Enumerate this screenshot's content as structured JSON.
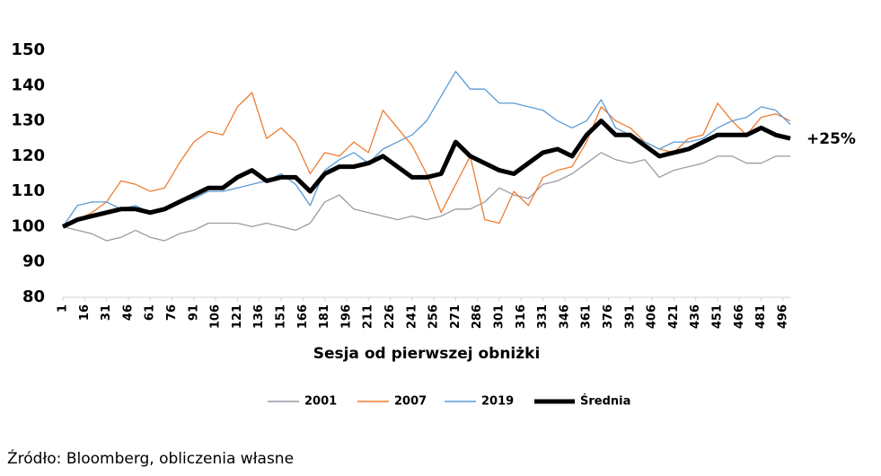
{
  "chart_data": {
    "type": "line",
    "x": [
      1,
      11,
      21,
      31,
      41,
      51,
      61,
      71,
      81,
      91,
      101,
      111,
      121,
      131,
      141,
      151,
      161,
      171,
      181,
      191,
      201,
      211,
      221,
      231,
      241,
      251,
      261,
      271,
      281,
      291,
      301,
      311,
      321,
      331,
      341,
      351,
      361,
      371,
      381,
      391,
      401,
      411,
      421,
      431,
      441,
      451,
      461,
      471,
      481,
      491,
      501
    ],
    "series": [
      {
        "name": "2001",
        "color": "#9a9aa6",
        "values": [
          100,
          99,
          98,
          96,
          97,
          99,
          97,
          96,
          98,
          99,
          101,
          101,
          101,
          100,
          101,
          100,
          99,
          101,
          107,
          109,
          105,
          104,
          103,
          102,
          103,
          102,
          103,
          105,
          105,
          107,
          111,
          109,
          108,
          112,
          113,
          115,
          118,
          121,
          119,
          118,
          119,
          114,
          116,
          117,
          118,
          120,
          120,
          118,
          118,
          120,
          120
        ]
      },
      {
        "name": "2007",
        "color": "#ed7d31",
        "values": [
          100,
          102,
          104,
          107,
          113,
          112,
          110,
          111,
          118,
          124,
          127,
          126,
          134,
          138,
          125,
          128,
          124,
          115,
          121,
          120,
          124,
          121,
          133,
          128,
          123,
          115,
          104,
          112,
          120,
          102,
          101,
          110,
          106,
          114,
          116,
          117,
          124,
          134,
          130,
          128,
          124,
          122,
          121,
          125,
          126,
          135,
          130,
          126,
          131,
          132,
          130
        ]
      },
      {
        "name": "2019",
        "color": "#5b9bd5",
        "values": [
          100,
          106,
          107,
          107,
          105,
          106,
          104,
          105,
          107,
          108,
          110,
          110,
          111,
          112,
          113,
          115,
          112,
          106,
          116,
          119,
          121,
          118,
          122,
          124,
          126,
          130,
          137,
          144,
          139,
          139,
          135,
          135,
          134,
          133,
          130,
          128,
          130,
          136,
          128,
          126,
          124,
          122,
          124,
          124,
          125,
          128,
          130,
          131,
          134,
          133,
          129
        ]
      },
      {
        "name": "Średnia",
        "color": "#000000",
        "values": [
          100,
          102,
          103,
          104,
          105,
          105,
          104,
          105,
          107,
          109,
          111,
          111,
          114,
          116,
          113,
          114,
          114,
          110,
          115,
          117,
          117,
          118,
          120,
          117,
          114,
          114,
          115,
          124,
          120,
          118,
          116,
          115,
          118,
          121,
          122,
          120,
          126,
          130,
          126,
          126,
          123,
          120,
          121,
          122,
          124,
          126,
          126,
          126,
          128,
          126,
          125
        ]
      }
    ],
    "xlim": [
      1,
      501
    ],
    "xticks": [
      1,
      16,
      31,
      46,
      61,
      76,
      91,
      106,
      121,
      136,
      151,
      166,
      181,
      196,
      211,
      226,
      241,
      256,
      271,
      286,
      301,
      316,
      331,
      346,
      361,
      376,
      391,
      406,
      421,
      436,
      451,
      466,
      481,
      496
    ],
    "ylim": [
      80,
      150
    ],
    "yticks": [
      80,
      90,
      100,
      110,
      120,
      130,
      140,
      150
    ],
    "xlabel": "Sesja od pierwszej obniżki",
    "annotation": "+25%",
    "source": "Źródło: Bloomberg, obliczenia własne",
    "grid": false,
    "legend": "bottom"
  }
}
